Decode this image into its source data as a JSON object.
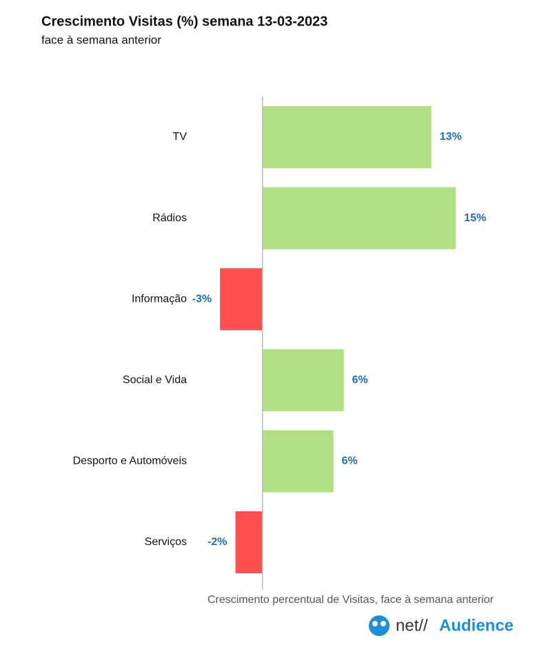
{
  "chart_data": {
    "type": "hbar",
    "title": "Crescimento Visitas (%) semana 13-03-2023",
    "subtitle": "face à semana anterior",
    "categories": [
      "TV",
      "Rádios",
      "Informação",
      "Social e Vida",
      "Desporto e Automóveis",
      "Serviços"
    ],
    "values": [
      13.1,
      15,
      -3.3,
      6.3,
      5.5,
      -2.1
    ],
    "value_labels": [
      "13%",
      "15%",
      "-3%",
      "6%",
      "6%",
      "-2%"
    ],
    "positive_color": "#b3df84",
    "negative_color": "#ff5050",
    "label_color": "#1f6fb5",
    "xlim": [
      -4,
      16
    ],
    "caption": "Crescimento percentual de Visitas, face à semana anterior",
    "logo": {
      "prefix": "net//",
      "name": "Audience"
    }
  }
}
